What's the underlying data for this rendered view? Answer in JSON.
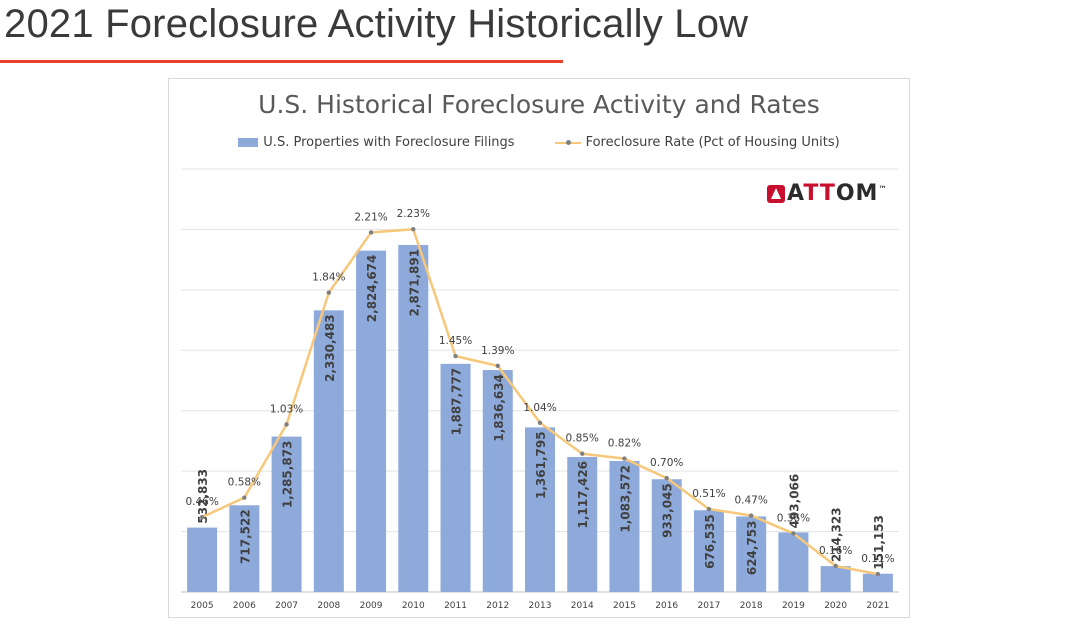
{
  "header": {
    "title": "2021 Foreclosure Activity Historically Low",
    "rule_color": "#e8412c"
  },
  "logo": {
    "text_prefix": "A",
    "text_accent": "TT",
    "text_suffix": "OM",
    "trademark": "™",
    "icon": "attom-logo-icon"
  },
  "chart_data": {
    "type": "bar",
    "title": "U.S. Historical Foreclosure Activity and Rates",
    "categories": [
      "2005",
      "2006",
      "2007",
      "2008",
      "2009",
      "2010",
      "2011",
      "2012",
      "2013",
      "2014",
      "2015",
      "2016",
      "2017",
      "2018",
      "2019",
      "2020",
      "2021"
    ],
    "series": [
      {
        "name": "U.S. Properties with Foreclosure Filings",
        "type": "bar",
        "color": "#8eaadb",
        "values": [
          532833,
          717522,
          1285873,
          2330483,
          2824674,
          2871891,
          1887777,
          1836634,
          1361795,
          1117426,
          1083572,
          933045,
          676535,
          624753,
          493066,
          214323,
          151153
        ],
        "labels": [
          "532,833",
          "717,522",
          "1,285,873",
          "2,330,483",
          "2,824,674",
          "2,871,891",
          "1,887,777",
          "1,836,634",
          "1,361,795",
          "1,117,426",
          "1,083,572",
          "933,045",
          "676,535",
          "624,753",
          "493,066",
          "214,323",
          "151,153"
        ]
      },
      {
        "name": "Foreclosure Rate (Pct of Housing Units)",
        "type": "line",
        "color": "#f7c77a",
        "marker_color": "#7f7f7f",
        "values": [
          0.46,
          0.58,
          1.03,
          1.84,
          2.21,
          2.23,
          1.45,
          1.39,
          1.04,
          0.85,
          0.82,
          0.7,
          0.51,
          0.47,
          0.36,
          0.16,
          0.11
        ],
        "labels": [
          "0.46%",
          "0.58%",
          "1.03%",
          "1.84%",
          "2.21%",
          "2.23%",
          "1.45%",
          "1.39%",
          "1.04%",
          "0.85%",
          "0.82%",
          "0.70%",
          "0.51%",
          "0.47%",
          "0.36%",
          "0.16%",
          "0.11%"
        ]
      }
    ],
    "ylim_bars": [
      0,
      3500000
    ],
    "ylim_rate": [
      0,
      2.6
    ],
    "grid": true,
    "legend_position": "top"
  }
}
